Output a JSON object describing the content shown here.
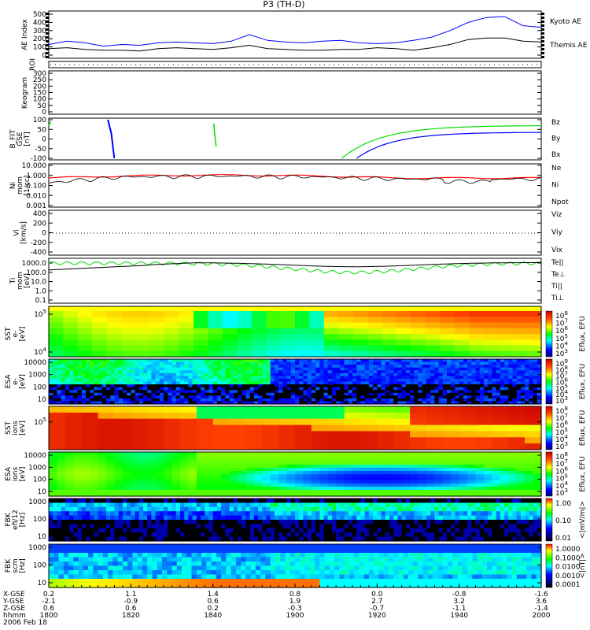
{
  "title": "P3 (TH-D)",
  "time_axis": {
    "ticks_hhmm": [
      "1800",
      "1820",
      "1840",
      "1900",
      "1920",
      "1940",
      "2000"
    ],
    "row_labels": [
      "X-GSE",
      "Y-GSE",
      "Z-GSE",
      "hhmm",
      "2006 Feb 18"
    ],
    "x_gse": [
      "0.2",
      "1.1",
      "1.4",
      "0.8",
      "0.0",
      "-0.8",
      "-1.6"
    ],
    "y_gse": [
      "-2.1",
      "-0.9",
      "0.6",
      "1.9",
      "2.7",
      "3.2",
      "3.6"
    ],
    "z_gse": [
      "0.6",
      "0.6",
      "0.2",
      "-0.3",
      "-0.7",
      "-1.1",
      "-1.4"
    ]
  },
  "colors": {
    "red": "#ff0000",
    "green": "#00dd00",
    "blue": "#0000ff",
    "black": "#000000",
    "navy": "#000090"
  },
  "chart_data": [
    {
      "type": "line",
      "id": "ae",
      "ylabel": "AE Index",
      "ylim": [
        0,
        500
      ],
      "yticks": [
        "500",
        "400",
        "300",
        "200",
        "100",
        "0"
      ],
      "series": [
        {
          "name": "Kyoto AE",
          "color": "#0000ff",
          "values": [
            130,
            170,
            150,
            110,
            130,
            120,
            150,
            160,
            150,
            140,
            170,
            250,
            180,
            160,
            150,
            170,
            180,
            150,
            140,
            150,
            180,
            220,
            300,
            400,
            460,
            470,
            360,
            340
          ]
        },
        {
          "name": "Themis AE",
          "color": "#000000",
          "values": [
            80,
            90,
            70,
            60,
            60,
            50,
            80,
            90,
            80,
            70,
            90,
            120,
            80,
            70,
            60,
            60,
            70,
            70,
            90,
            80,
            60,
            90,
            130,
            190,
            210,
            210,
            170,
            160
          ]
        }
      ]
    },
    {
      "type": "line",
      "id": "roi",
      "ylabel": "ROI",
      "yticks": []
    },
    {
      "type": "heatmap",
      "id": "keogram",
      "ylabel": "Keogram",
      "ylim": [
        0,
        300
      ],
      "yticks": [
        "300",
        "250",
        "200",
        "150",
        "100",
        "50",
        "0"
      ]
    },
    {
      "type": "line",
      "id": "bfit",
      "ylabel": "B_FIT\nGSE\n[nT]",
      "ylim": [
        -100,
        100
      ],
      "yticks": [
        "100",
        "50",
        "0",
        "-50",
        "-100"
      ],
      "series": [
        {
          "name": "Bz",
          "color": "#ff0000"
        },
        {
          "name": "By",
          "color": "#00dd00"
        },
        {
          "name": "Bx",
          "color": "#0000ff"
        }
      ]
    },
    {
      "type": "line",
      "id": "ni",
      "ylabel": "Ni\nmom\n[1/cc]",
      "scale": "log",
      "ylim": [
        0.001,
        10
      ],
      "yticks": [
        "10.000",
        "1.000",
        "0.100",
        "0.010",
        "0.001"
      ],
      "series": [
        {
          "name": "Ne",
          "color": "#ff0000"
        },
        {
          "name": "Ni",
          "color": "#000000"
        },
        {
          "name": "Npot",
          "color": "#000090"
        }
      ]
    },
    {
      "type": "line",
      "id": "vi",
      "ylabel": "Vi\n[km/s]",
      "ylim": [
        -500,
        500
      ],
      "yticks": [
        "400",
        "200",
        "0",
        "-200",
        "-400"
      ],
      "series": [
        {
          "name": "Viz",
          "color": "#ff0000"
        },
        {
          "name": "Viy",
          "color": "#00dd00"
        },
        {
          "name": "Vix",
          "color": "#000090"
        }
      ]
    },
    {
      "type": "line",
      "id": "ti",
      "ylabel": "Ti\nmom\n[eV]",
      "scale": "log",
      "ylim": [
        0.1,
        10000
      ],
      "yticks": [
        "1000.0",
        "100.0",
        "10.0",
        "1.0",
        "0.1"
      ],
      "series": [
        {
          "name": "Te||",
          "color": "#000000"
        },
        {
          "name": "Te⊥",
          "color": "#ff0000"
        },
        {
          "name": "Ti||",
          "color": "#00dd00"
        },
        {
          "name": "Ti⊥",
          "color": "#0000ff"
        }
      ]
    },
    {
      "type": "heatmap",
      "id": "sst_e",
      "ylabel": "SST\ne-\n[eV]",
      "yticks": [
        "10^5",
        "10^4"
      ],
      "colorbar": "Eflux, EFU",
      "cbar_ticks": [
        "10^8",
        "10^7",
        "10^6",
        "10^5",
        "10^4",
        "10^3"
      ]
    },
    {
      "type": "heatmap",
      "id": "esa_e",
      "ylabel": "ESA\ne-\n[eV]",
      "yticks": [
        "10000",
        "1000",
        "100",
        "10"
      ],
      "colorbar": "Eflux, EFU",
      "cbar_ticks": [
        "10^9",
        "10^8",
        "10^7",
        "10^6",
        "10^5",
        "10^4",
        "10^3"
      ]
    },
    {
      "type": "heatmap",
      "id": "sst_i",
      "ylabel": "SST\nions\n[eV]",
      "yticks": [
        "10^5"
      ],
      "colorbar": "Eflux, EFU",
      "cbar_ticks": [
        "10^8",
        "10^7",
        "10^6",
        "10^5",
        "10^4",
        "10^3"
      ]
    },
    {
      "type": "heatmap",
      "id": "esa_i",
      "ylabel": "ESA\nions\n[eV]",
      "yticks": [
        "10000",
        "1000",
        "100",
        "10"
      ],
      "colorbar": "Eflux, EFU",
      "cbar_ticks": [
        "10^8",
        "10^7",
        "10^6",
        "10^5",
        "10^4",
        "10^3"
      ]
    },
    {
      "type": "heatmap",
      "id": "fbk_e",
      "ylabel": "FBK\nefi/12\n[Hz]",
      "yticks": [
        "1000",
        "100",
        "10"
      ],
      "colorbar": "<|mV/m|>",
      "cbar_ticks": [
        "1.00",
        "0.10",
        "0.01"
      ]
    },
    {
      "type": "heatmap",
      "id": "fbk_b",
      "ylabel": "FBK\nscm\n[Hz]",
      "yticks": [
        "1000",
        "100",
        "10"
      ],
      "colorbar": "<|nT|>",
      "cbar_ticks": [
        "1.0000",
        "0.1000",
        "0.0100",
        "0.0010",
        "0.0001"
      ]
    }
  ]
}
